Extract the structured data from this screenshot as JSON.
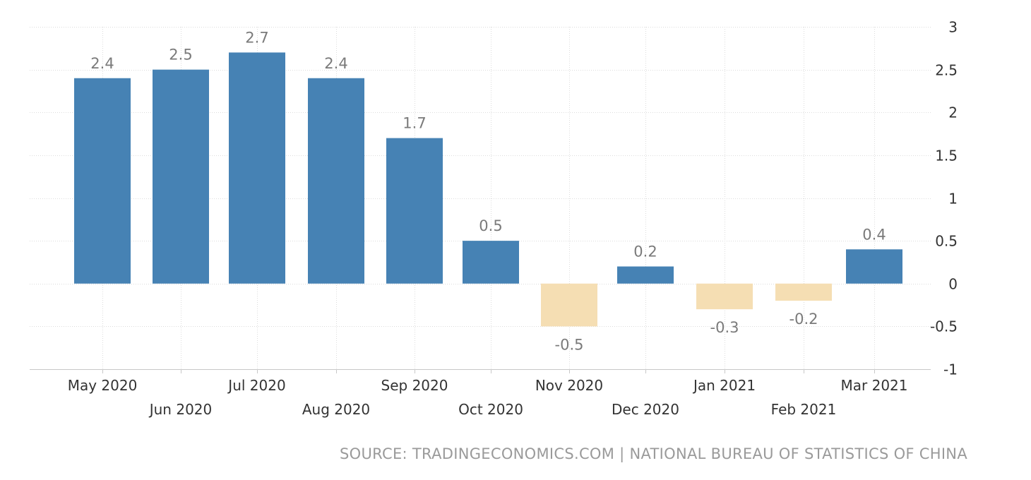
{
  "chart_data": {
    "type": "bar",
    "categories": [
      "May 2020",
      "Jun 2020",
      "Jul 2020",
      "Aug 2020",
      "Sep 2020",
      "Oct 2020",
      "Nov 2020",
      "Dec 2020",
      "Jan 2021",
      "Feb 2021",
      "Mar 2021"
    ],
    "values": [
      2.4,
      2.5,
      2.7,
      2.4,
      1.7,
      0.5,
      -0.5,
      0.2,
      -0.3,
      -0.2,
      0.4
    ],
    "data_labels": [
      "2.4",
      "2.5",
      "2.7",
      "2.4",
      "1.7",
      "0.5",
      "-0.5",
      "0.2",
      "-0.3",
      "-0.2",
      "0.4"
    ],
    "yticks": [
      "3",
      "2.5",
      "2",
      "1.5",
      "1",
      "0.5",
      "0",
      "-0.5",
      "-1"
    ],
    "ylim": [
      -1,
      3
    ],
    "y_axis_side": "right",
    "grid": true,
    "colors": {
      "positive": "#4682b4",
      "negative": "#f5deb3"
    }
  },
  "source": "SOURCE: TRADINGECONOMICS.COM | NATIONAL BUREAU OF STATISTICS OF CHINA"
}
